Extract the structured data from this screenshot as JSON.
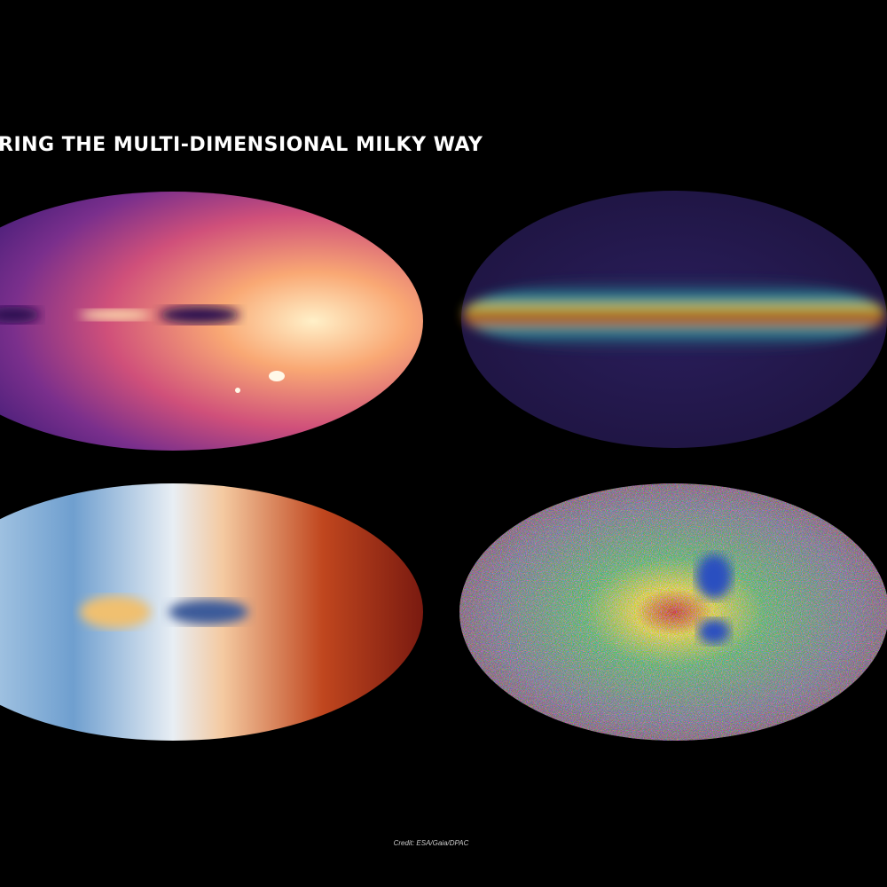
{
  "title": "RING THE MULTI-DIMENSIONAL MILKY WAY",
  "credit": "Credit: ESA/Gaia/DPAC"
}
